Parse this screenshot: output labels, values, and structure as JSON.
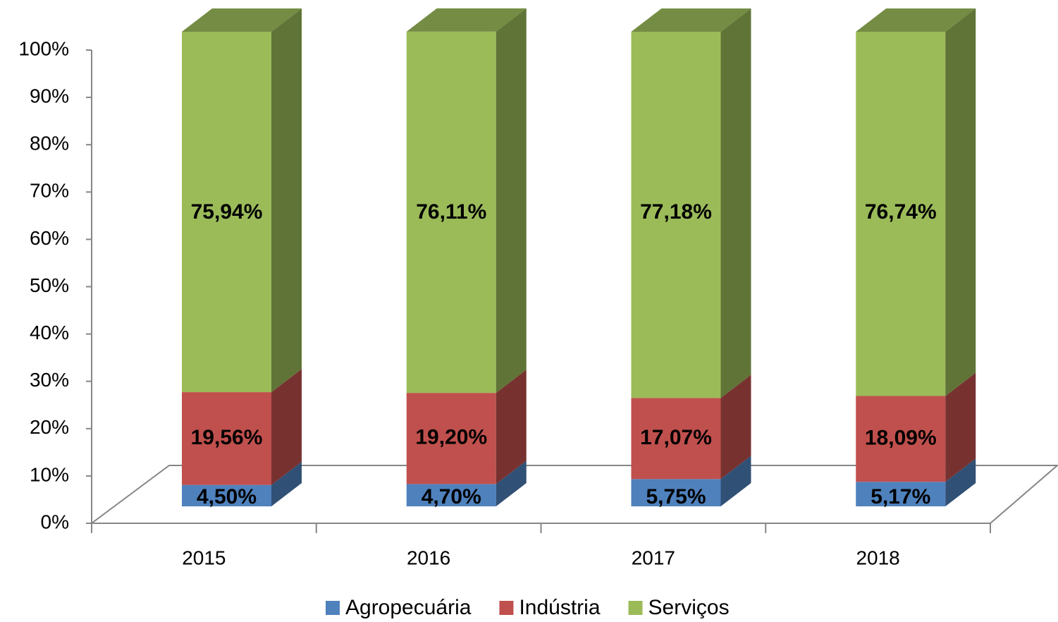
{
  "chart_data": {
    "type": "bar",
    "stacked": true,
    "categories": [
      "2015",
      "2016",
      "2017",
      "2018"
    ],
    "series": [
      {
        "name": "Agropecuária",
        "color": "#4f81bd",
        "values": [
          4.5,
          4.7,
          5.75,
          5.17
        ],
        "value_labels": [
          "4,50%",
          "4,70%",
          "5,75%",
          "5,17%"
        ]
      },
      {
        "name": "Indústria",
        "color": "#c0504d",
        "values": [
          19.56,
          19.2,
          17.07,
          18.09
        ],
        "value_labels": [
          "19,56%",
          "19,20%",
          "17,07%",
          "18,09%"
        ]
      },
      {
        "name": "Serviços",
        "color": "#9bbb59",
        "values": [
          75.94,
          76.11,
          77.18,
          76.74
        ],
        "value_labels": [
          "75,94%",
          "76,11%",
          "77,18%",
          "76,74%"
        ]
      }
    ],
    "ylim": [
      0,
      100
    ],
    "yticks": [
      {
        "value": 0,
        "label": "0%"
      },
      {
        "value": 10,
        "label": "10%"
      },
      {
        "value": 20,
        "label": "20%"
      },
      {
        "value": 30,
        "label": "30%"
      },
      {
        "value": 40,
        "label": "40%"
      },
      {
        "value": 50,
        "label": "50%"
      },
      {
        "value": 60,
        "label": "60%"
      },
      {
        "value": 70,
        "label": "70%"
      },
      {
        "value": 80,
        "label": "80%"
      },
      {
        "value": 90,
        "label": "90%"
      },
      {
        "value": 100,
        "label": "100%"
      }
    ],
    "legend": "bottom"
  }
}
